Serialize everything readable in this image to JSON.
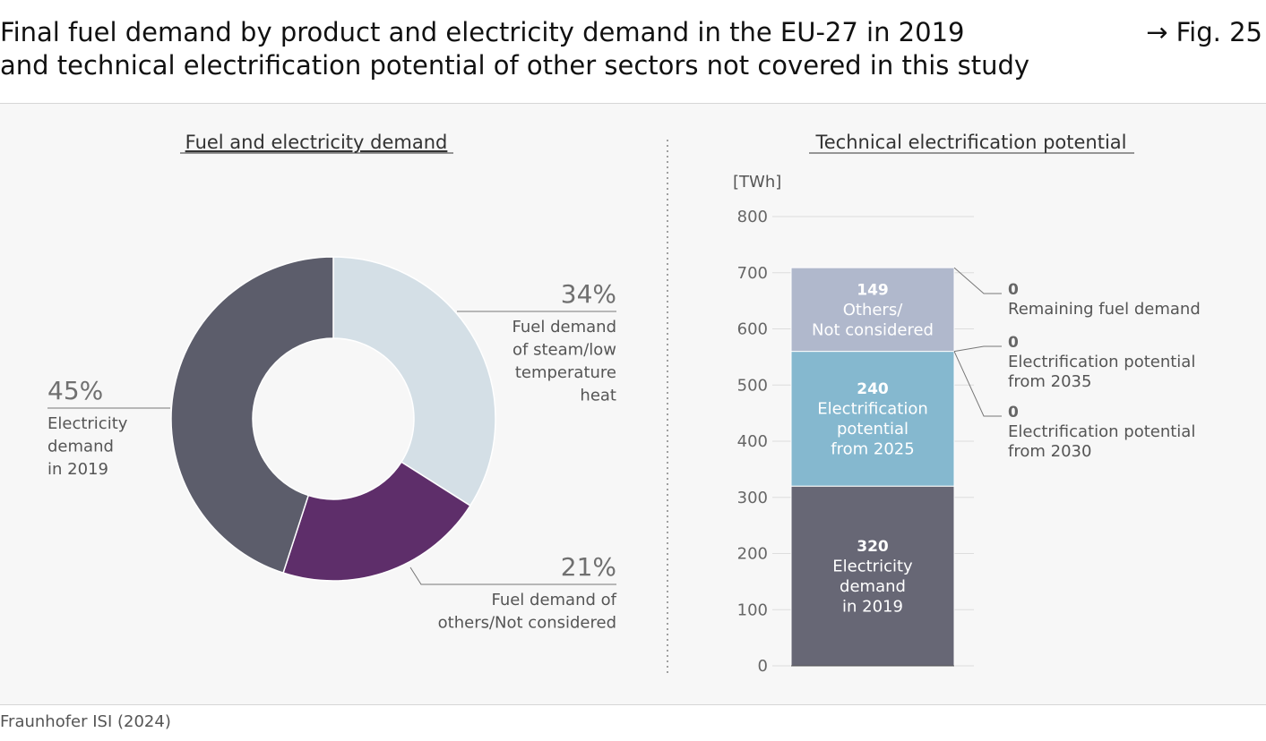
{
  "header": {
    "title_line1": "Final fuel demand by product and electricity demand in the EU-27 in 2019",
    "title_line2": "and technical electrification potential of other sectors not covered in this study",
    "figure_ref": "→ Fig. 25"
  },
  "footer": {
    "source": "Fraunhofer ISI (2024)"
  },
  "chart_data": [
    {
      "type": "pie",
      "title": "Fuel and electricity demand",
      "donut": true,
      "slices": [
        {
          "pct": "34%",
          "value": 34,
          "label_lines": [
            "Fuel demand",
            "of steam/low",
            "temperature",
            "heat"
          ],
          "color": "#d4dfe6"
        },
        {
          "pct": "21%",
          "value": 21,
          "label_lines": [
            "Fuel demand of",
            "others/Not considered"
          ],
          "color": "#5e2e6a"
        },
        {
          "pct": "45%",
          "value": 45,
          "label_lines": [
            "Electricity",
            "demand",
            "in 2019"
          ],
          "color": "#5c5d6b"
        }
      ]
    },
    {
      "type": "bar",
      "stacked": true,
      "title": "Technical electrification potential",
      "ylabel": "[TWh]",
      "ylim": [
        0,
        800
      ],
      "yticks": [
        "0",
        "100",
        "200",
        "300",
        "400",
        "500",
        "600",
        "700",
        "800"
      ],
      "segments": [
        {
          "value": 320,
          "value_label": "320",
          "label_lines": [
            "Electricity",
            "demand",
            "in 2019"
          ],
          "color": "#676775"
        },
        {
          "value": 240,
          "value_label": "240",
          "label_lines": [
            "Electrification",
            "potential",
            "from 2025"
          ],
          "color": "#85b8cf"
        },
        {
          "value": 0,
          "value_label": "0",
          "label_lines": [
            "Electrification potential",
            "from 2030"
          ],
          "color": "#85b8cf"
        },
        {
          "value": 0,
          "value_label": "0",
          "label_lines": [
            "Electrification potential",
            "from 2035"
          ],
          "color": "#85b8cf"
        },
        {
          "value": 149,
          "value_label": "149",
          "label_lines": [
            "Others/",
            "Not considered"
          ],
          "color": "#b0b8cc"
        },
        {
          "value": 0,
          "value_label": "0",
          "label_lines": [
            "Remaining fuel demand"
          ],
          "color": "#b0b8cc"
        }
      ]
    }
  ]
}
